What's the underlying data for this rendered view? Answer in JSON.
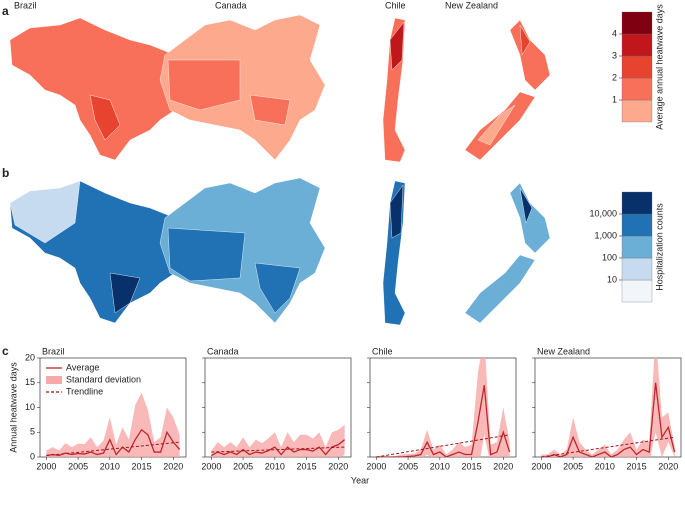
{
  "panel_labels": [
    "a",
    "b",
    "c"
  ],
  "map_titles": [
    "Brazil",
    "Canada",
    "Chile",
    "New Zealand"
  ],
  "legend_a": {
    "title": "Average annual heatwave days",
    "colors": [
      "#fca98e",
      "#f8705a",
      "#e8432f",
      "#c0161c",
      "#7f0010"
    ],
    "lim": [
      0,
      5
    ],
    "ticks": [
      1,
      2,
      3,
      4
    ]
  },
  "legend_b": {
    "title": "Hospitalization counts",
    "colors": [
      "#f2f6fb",
      "#c6dbef",
      "#6baed6",
      "#2171b5",
      "#08306b"
    ],
    "lim": [
      1,
      100000
    ],
    "log": true,
    "ticks": [
      10,
      100,
      {
        "value": 1000,
        "label": "1,000"
      },
      {
        "value": 10000,
        "label": "10,000"
      }
    ]
  },
  "xlabel": "Year",
  "chart_data": [
    {
      "type": "line",
      "title": "Brazil",
      "ylabel": "Annual heatwave days",
      "show_ytick_labels": true,
      "x": [
        2000,
        2001,
        2002,
        2003,
        2004,
        2005,
        2006,
        2007,
        2008,
        2009,
        2010,
        2011,
        2012,
        2013,
        2014,
        2015,
        2016,
        2017,
        2018,
        2019,
        2020,
        2021
      ],
      "xlim": [
        1999,
        2022
      ],
      "xticks": [
        2000,
        2005,
        2010,
        2015,
        2020
      ],
      "ylim": [
        0,
        20
      ],
      "yticks": [
        0,
        5,
        10,
        15,
        20
      ],
      "series": [
        {
          "name": "Average",
          "color": "#c0262d",
          "values": [
            0.3,
            0.5,
            0.3,
            0.8,
            0.5,
            0.7,
            0.6,
            1.0,
            0.5,
            0.8,
            3.5,
            0.5,
            2.0,
            1.0,
            3.5,
            5.5,
            4.5,
            1.0,
            1.0,
            5.0,
            3.0,
            1.5
          ]
        },
        {
          "name": "Standard deviation",
          "color": "#f7a8a8",
          "values": [
            1,
            1.5,
            1,
            2,
            1.5,
            2,
            2,
            3,
            1.5,
            2.5,
            4.5,
            2,
            4,
            2.5,
            7,
            7.5,
            5,
            2,
            3,
            5,
            5,
            3
          ]
        },
        {
          "name": "Trendline",
          "color": "#a0151a",
          "x": [
            2000,
            2021
          ],
          "values": [
            0.3,
            3.0
          ]
        }
      ]
    },
    {
      "type": "line",
      "title": "Canada",
      "show_ytick_labels": false,
      "x": [
        2000,
        2001,
        2002,
        2003,
        2004,
        2005,
        2006,
        2007,
        2008,
        2009,
        2010,
        2011,
        2012,
        2013,
        2014,
        2015,
        2016,
        2017,
        2018,
        2019,
        2020,
        2021
      ],
      "xlim": [
        1999,
        2022
      ],
      "xticks": [
        2000,
        2005,
        2010,
        2015,
        2020
      ],
      "ylim": [
        0,
        20
      ],
      "yticks": [
        0,
        5,
        10,
        15,
        20
      ],
      "series": [
        {
          "color": "#c0262d",
          "values": [
            0.3,
            1,
            0.5,
            1,
            0.5,
            1.5,
            0.5,
            1,
            0.8,
            1.3,
            2,
            0.5,
            2,
            1,
            1.5,
            1.5,
            1.2,
            2,
            0.5,
            2,
            2.5,
            3.5
          ]
        },
        {
          "color": "#f7a8a8",
          "values": [
            1,
            2,
            1.5,
            2,
            1.5,
            2.5,
            1.5,
            2.5,
            2,
            2.5,
            3,
            1.5,
            3,
            2,
            3,
            3,
            2.5,
            3,
            1.5,
            3,
            3,
            3
          ]
        },
        {
          "color": "#a0151a",
          "x": [
            2000,
            2021
          ],
          "values": [
            1.0,
            2.0
          ]
        }
      ]
    },
    {
      "type": "line",
      "title": "Chile",
      "show_ytick_labels": false,
      "x": [
        2000,
        2001,
        2002,
        2003,
        2004,
        2005,
        2006,
        2007,
        2008,
        2009,
        2010,
        2011,
        2012,
        2013,
        2014,
        2015,
        2016,
        2017,
        2018,
        2019,
        2020,
        2021
      ],
      "xlim": [
        1999,
        2022
      ],
      "xticks": [
        2000,
        2005,
        2010,
        2015,
        2020
      ],
      "ylim": [
        0,
        20
      ],
      "yticks": [
        0,
        5,
        10,
        15,
        20
      ],
      "series": [
        {
          "color": "#c0262d",
          "values": [
            0,
            0,
            0,
            0,
            0,
            0.1,
            0.2,
            0.5,
            3,
            0.5,
            1,
            0,
            0.5,
            1,
            0.5,
            0.5,
            7,
            14.5,
            0.5,
            1,
            5,
            1
          ]
        },
        {
          "color": "#f7a8a8",
          "values": [
            0,
            0.2,
            0,
            0.2,
            0.5,
            0.5,
            0.5,
            1,
            2.5,
            1,
            1.5,
            0.5,
            1,
            2,
            1.5,
            2,
            10,
            10,
            2,
            2,
            5,
            2
          ]
        },
        {
          "color": "#a0151a",
          "x": [
            2000,
            2021
          ],
          "values": [
            0,
            4.5
          ]
        }
      ]
    },
    {
      "type": "line",
      "title": "New Zealand",
      "show_ytick_labels": false,
      "x": [
        2000,
        2001,
        2002,
        2003,
        2004,
        2005,
        2006,
        2007,
        2008,
        2009,
        2010,
        2011,
        2012,
        2013,
        2014,
        2015,
        2016,
        2017,
        2018,
        2019,
        2020,
        2021
      ],
      "xlim": [
        1999,
        2022
      ],
      "xticks": [
        2000,
        2005,
        2010,
        2015,
        2020
      ],
      "ylim": [
        0,
        20
      ],
      "yticks": [
        0,
        5,
        10,
        15,
        20
      ],
      "series": [
        {
          "color": "#c0262d",
          "values": [
            0,
            0,
            0.5,
            0,
            0.5,
            4,
            1,
            0.5,
            0,
            0.5,
            1,
            0,
            0.5,
            1.5,
            2,
            0.5,
            1.5,
            1,
            15,
            4,
            6,
            1
          ]
        },
        {
          "color": "#f7a8a8",
          "values": [
            0.5,
            0.5,
            1,
            0.5,
            1,
            4,
            2,
            1,
            0.5,
            1,
            1.5,
            0.5,
            1,
            2,
            3,
            1,
            2,
            2,
            10,
            4,
            3,
            1
          ]
        },
        {
          "color": "#a0151a",
          "x": [
            2000,
            2021
          ],
          "values": [
            0,
            4.0
          ]
        }
      ]
    }
  ]
}
